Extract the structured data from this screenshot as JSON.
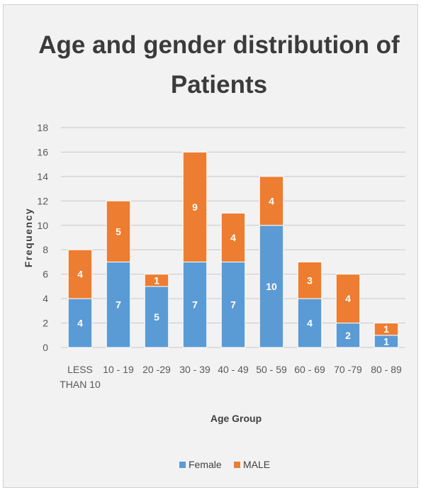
{
  "chart_data": {
    "type": "bar",
    "stacked": true,
    "title_lines": [
      "Age and gender distribution of",
      "Patients"
    ],
    "xlabel": "Age Group",
    "ylabel": "Frequency",
    "categories": [
      [
        "LESS",
        "THAN 10"
      ],
      [
        "10 - 19"
      ],
      [
        "20 -29"
      ],
      [
        "30 - 39"
      ],
      [
        "40 - 49"
      ],
      [
        "50 - 59"
      ],
      [
        "60 - 69"
      ],
      [
        "70 -79"
      ],
      [
        "80 - 89"
      ]
    ],
    "series": [
      {
        "name": "Female",
        "color": "#5b9bd5",
        "values": [
          4,
          7,
          5,
          7,
          7,
          10,
          4,
          2,
          1
        ]
      },
      {
        "name": "MALE",
        "color": "#ed7d31",
        "values": [
          4,
          5,
          1,
          9,
          4,
          4,
          3,
          4,
          1
        ]
      }
    ],
    "ylim": [
      0,
      18
    ],
    "yticks": [
      0,
      2,
      4,
      6,
      8,
      10,
      12,
      14,
      16,
      18
    ],
    "grid": true,
    "legend": "bottom"
  }
}
